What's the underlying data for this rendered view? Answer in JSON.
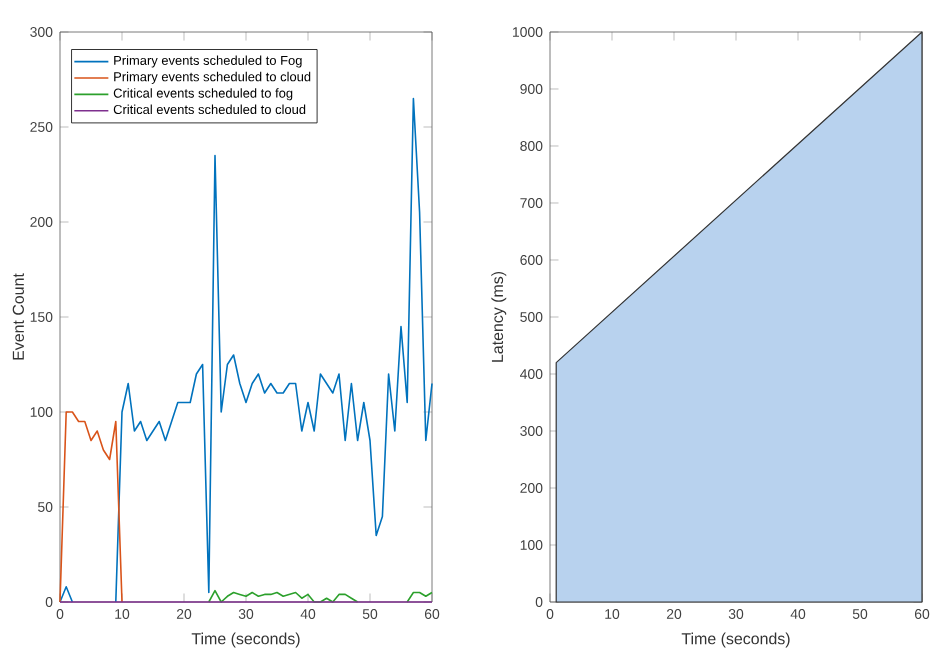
{
  "chart_data": [
    {
      "type": "line",
      "xlabel": "Time (seconds)",
      "ylabel": "Event Count",
      "x": [
        0,
        1,
        2,
        3,
        4,
        5,
        6,
        7,
        8,
        9,
        10,
        11,
        12,
        13,
        14,
        15,
        16,
        17,
        18,
        19,
        20,
        21,
        22,
        23,
        24,
        25,
        26,
        27,
        28,
        29,
        30,
        31,
        32,
        33,
        34,
        35,
        36,
        37,
        38,
        39,
        40,
        41,
        42,
        43,
        44,
        45,
        46,
        47,
        48,
        49,
        50,
        51,
        52,
        53,
        54,
        55,
        56,
        57,
        58,
        59,
        60
      ],
      "xlim": [
        0,
        60
      ],
      "xticks": [
        0,
        10,
        20,
        30,
        40,
        50,
        60
      ],
      "ylim": [
        0,
        300
      ],
      "yticks": [
        0,
        50,
        100,
        150,
        200,
        250,
        300
      ],
      "legend": "top left",
      "series": [
        {
          "name": "Primary events scheduled to Fog",
          "color": "#0072bd",
          "values": [
            0,
            8,
            0,
            null,
            null,
            null,
            null,
            null,
            null,
            0,
            100,
            115,
            90,
            95,
            85,
            90,
            95,
            85,
            95,
            105,
            105,
            105,
            120,
            125,
            5,
            235,
            100,
            125,
            130,
            115,
            105,
            115,
            120,
            110,
            115,
            110,
            110,
            115,
            115,
            90,
            105,
            90,
            120,
            115,
            110,
            120,
            85,
            115,
            85,
            105,
            85,
            35,
            45,
            120,
            90,
            145,
            105,
            265,
            205,
            85,
            115
          ]
        },
        {
          "name": "Primary events scheduled to cloud",
          "color": "#d95319",
          "values": [
            0,
            100,
            100,
            95,
            95,
            85,
            90,
            80,
            75,
            95,
            0,
            null,
            null,
            null,
            null,
            null,
            null,
            null,
            null,
            null,
            null,
            null,
            null,
            null,
            null,
            null,
            null,
            null,
            null,
            null,
            null,
            null,
            null,
            null,
            null,
            null,
            null,
            null,
            null,
            null,
            null,
            null,
            null,
            null,
            null,
            null,
            null,
            null,
            null,
            null,
            null,
            null,
            null,
            null,
            null,
            null,
            null,
            null,
            null,
            null,
            null
          ]
        },
        {
          "name": "Critical events scheduled to fog",
          "color": "#2ca02c",
          "values": [
            null,
            null,
            null,
            null,
            null,
            null,
            null,
            null,
            null,
            null,
            null,
            null,
            null,
            null,
            null,
            null,
            null,
            null,
            null,
            null,
            null,
            null,
            null,
            null,
            0,
            6,
            0,
            3,
            5,
            4,
            3,
            5,
            3,
            4,
            4,
            5,
            3,
            4,
            5,
            2,
            4,
            0,
            0,
            2,
            0,
            4,
            4,
            2,
            0,
            null,
            null,
            null,
            null,
            null,
            null,
            null,
            0,
            5,
            5,
            3,
            5
          ]
        },
        {
          "name": "Critical events scheduled to cloud",
          "color": "#7e2f8e",
          "values": [
            0,
            0,
            0,
            0,
            0,
            0,
            0,
            0,
            0,
            0,
            0,
            0,
            0,
            0,
            0,
            0,
            0,
            0,
            0,
            0,
            0,
            0,
            0,
            0,
            0,
            0,
            0,
            0,
            0,
            0,
            0,
            0,
            0,
            0,
            0,
            0,
            0,
            0,
            0,
            0,
            0,
            0,
            0,
            0,
            0,
            0,
            0,
            0,
            0,
            0,
            0,
            0,
            0,
            0,
            0,
            0,
            0,
            0,
            0,
            0,
            0
          ]
        }
      ]
    },
    {
      "type": "area",
      "xlabel": "Time (seconds)",
      "ylabel": "Latency (ms)",
      "x": [
        1,
        60
      ],
      "xlim": [
        0,
        60
      ],
      "xticks": [
        0,
        10,
        20,
        30,
        40,
        50,
        60
      ],
      "ylim": [
        0,
        1000
      ],
      "yticks": [
        0,
        100,
        200,
        300,
        400,
        500,
        600,
        700,
        800,
        900,
        1000
      ],
      "series": [
        {
          "color": "#b8d2ee",
          "values": [
            420,
            1000
          ]
        }
      ]
    }
  ]
}
